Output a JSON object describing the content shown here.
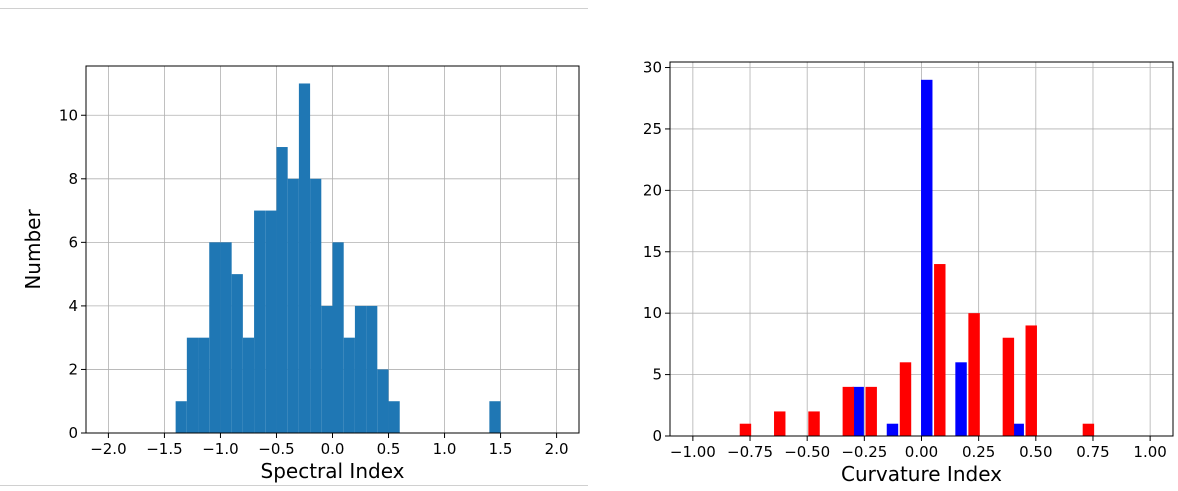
{
  "chart_data": [
    {
      "type": "bar",
      "xlabel": "Spectral Index",
      "ylabel": "Number",
      "xlim": [
        -2.2,
        2.2
      ],
      "ylim": [
        0,
        11.55
      ],
      "grid": true,
      "bar_color": "#1f77b4",
      "bin_width": 0.1,
      "x_ticks": [
        -2.0,
        -1.5,
        -1.0,
        -0.5,
        0.0,
        0.5,
        1.0,
        1.5,
        2.0
      ],
      "x_tick_labels": [
        "−2.0",
        "−1.5",
        "−1.0",
        "−0.5",
        "0.0",
        "0.5",
        "1.0",
        "1.5",
        "2.0"
      ],
      "y_ticks": [
        0,
        2,
        4,
        6,
        8,
        10
      ],
      "y_tick_labels": [
        "0",
        "2",
        "4",
        "6",
        "8",
        "10"
      ],
      "bins": [
        {
          "x": -1.4,
          "count": 1
        },
        {
          "x": -1.3,
          "count": 3
        },
        {
          "x": -1.2,
          "count": 3
        },
        {
          "x": -1.1,
          "count": 6
        },
        {
          "x": -1.0,
          "count": 6
        },
        {
          "x": -0.9,
          "count": 5
        },
        {
          "x": -0.8,
          "count": 3
        },
        {
          "x": -0.7,
          "count": 7
        },
        {
          "x": -0.6,
          "count": 7
        },
        {
          "x": -0.5,
          "count": 9
        },
        {
          "x": -0.4,
          "count": 8
        },
        {
          "x": -0.3,
          "count": 11
        },
        {
          "x": -0.2,
          "count": 8
        },
        {
          "x": -0.1,
          "count": 4
        },
        {
          "x": 0.0,
          "count": 6
        },
        {
          "x": 0.1,
          "count": 3
        },
        {
          "x": 0.2,
          "count": 4
        },
        {
          "x": 0.3,
          "count": 4
        },
        {
          "x": 0.4,
          "count": 2
        },
        {
          "x": 0.5,
          "count": 1
        },
        {
          "x": 1.4,
          "count": 1
        }
      ]
    },
    {
      "type": "bar",
      "xlabel": "Curvature Index",
      "ylabel": "",
      "xlim": [
        -1.1,
        1.1
      ],
      "ylim": [
        0,
        30.45
      ],
      "grid": true,
      "x_ticks": [
        -1.0,
        -0.75,
        -0.5,
        -0.25,
        0.0,
        0.25,
        0.5,
        0.75,
        1.0
      ],
      "x_tick_labels": [
        "−1.00",
        "−0.75",
        "−0.50",
        "−0.25",
        "0.00",
        "0.25",
        "0.50",
        "0.75",
        "1.00"
      ],
      "y_ticks": [
        0,
        5,
        10,
        15,
        20,
        25,
        30
      ],
      "y_tick_labels": [
        "0",
        "5",
        "10",
        "15",
        "20",
        "25",
        "30"
      ],
      "bar_width": 0.05,
      "series": [
        {
          "color": "#0000ff",
          "bars": [
            {
              "x": -0.302,
              "count": 4
            },
            {
              "x": -0.152,
              "count": 1
            },
            {
              "x": -0.002,
              "count": 29
            },
            {
              "x": 0.148,
              "count": 6
            },
            {
              "x": 0.398,
              "count": 1
            }
          ]
        },
        {
          "color": "#ff0000",
          "bars": [
            {
              "x": -0.795,
              "count": 1
            },
            {
              "x": -0.645,
              "count": 2
            },
            {
              "x": -0.495,
              "count": 2
            },
            {
              "x": -0.345,
              "count": 4
            },
            {
              "x": -0.245,
              "count": 4
            },
            {
              "x": -0.095,
              "count": 6
            },
            {
              "x": 0.055,
              "count": 14
            },
            {
              "x": 0.205,
              "count": 10
            },
            {
              "x": 0.355,
              "count": 8
            },
            {
              "x": 0.455,
              "count": 9
            },
            {
              "x": 0.705,
              "count": 1
            }
          ]
        }
      ]
    }
  ]
}
